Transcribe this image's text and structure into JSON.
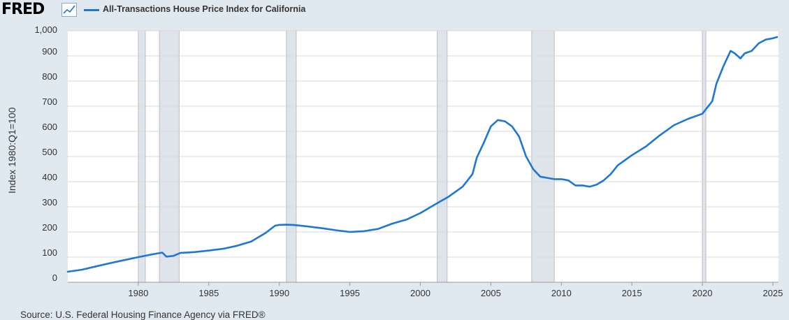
{
  "brand": {
    "logo_text": "FRED",
    "logo_icon": "chart-line-icon"
  },
  "legend": {
    "label": "All-Transactions House Price Index for California",
    "color": "#1f77d4"
  },
  "source": "Source: U.S. Federal Housing Finance Agency via FRED®",
  "chart_data": {
    "type": "line",
    "title": "All-Transactions House Price Index for California",
    "ylabel": "Index 1980:Q1=100",
    "xlabel": "",
    "xlim": [
      1975,
      2025.4
    ],
    "ylim": [
      0,
      1000
    ],
    "xticks": [
      "1980",
      "1985",
      "1990",
      "1995",
      "2000",
      "2005",
      "2010",
      "2015",
      "2020",
      "2025"
    ],
    "yticks": [
      "0",
      "100",
      "200",
      "300",
      "400",
      "500",
      "600",
      "700",
      "800",
      "900",
      "1,000"
    ],
    "grid": "horizontal",
    "legend_position": "top-left",
    "recessions": [
      [
        1980.0,
        1980.5
      ],
      [
        1981.5,
        1982.9
      ],
      [
        1990.5,
        1991.2
      ],
      [
        2001.2,
        2001.9
      ],
      [
        2007.9,
        2009.5
      ],
      [
        2020.0,
        2020.25
      ]
    ],
    "series": [
      {
        "name": "All-Transactions House Price Index for California",
        "color": "#1f77d4",
        "x": [
          1975.0,
          1976.0,
          1977.0,
          1978.0,
          1979.0,
          1980.0,
          1981.0,
          1981.7,
          1982.0,
          1982.5,
          1983.0,
          1984.0,
          1985.0,
          1986.0,
          1987.0,
          1988.0,
          1989.0,
          1989.7,
          1990.0,
          1990.5,
          1991.0,
          1992.0,
          1993.0,
          1994.0,
          1995.0,
          1996.0,
          1997.0,
          1998.0,
          1999.0,
          2000.0,
          2001.0,
          2002.0,
          2003.0,
          2003.7,
          2004.0,
          2004.5,
          2005.0,
          2005.5,
          2006.0,
          2006.5,
          2007.0,
          2007.5,
          2008.0,
          2008.5,
          2009.0,
          2009.5,
          2010.0,
          2010.5,
          2011.0,
          2011.5,
          2012.0,
          2012.5,
          2013.0,
          2013.5,
          2014.0,
          2015.0,
          2016.0,
          2017.0,
          2018.0,
          2019.0,
          2020.0,
          2020.7,
          2021.0,
          2021.5,
          2022.0,
          2022.3,
          2022.7,
          2023.0,
          2023.5,
          2024.0,
          2024.5,
          2025.0,
          2025.3
        ],
        "y": [
          42,
          50,
          63,
          76,
          88,
          100,
          111,
          118,
          102,
          105,
          117,
          120,
          126,
          133,
          145,
          162,
          195,
          225,
          228,
          229,
          228,
          222,
          215,
          207,
          200,
          203,
          212,
          233,
          249,
          275,
          308,
          340,
          380,
          430,
          495,
          555,
          620,
          645,
          640,
          620,
          580,
          500,
          450,
          420,
          415,
          410,
          410,
          405,
          385,
          385,
          380,
          388,
          405,
          430,
          465,
          505,
          540,
          585,
          625,
          650,
          670,
          720,
          790,
          860,
          920,
          910,
          890,
          910,
          920,
          950,
          965,
          970,
          975
        ]
      }
    ]
  }
}
